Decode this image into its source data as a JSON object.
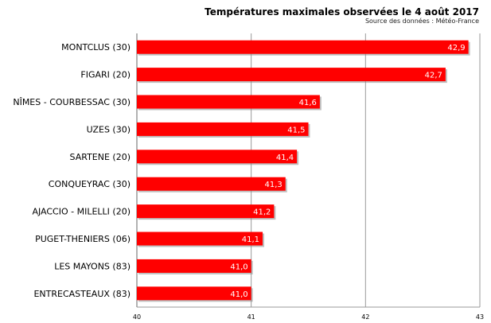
{
  "chart_data": {
    "type": "bar",
    "orientation": "horizontal",
    "title": "Températures maximales observées le 4 août 2017",
    "subtitle": "Source des données : Météo-France",
    "categories": [
      "MONTCLUS (30)",
      "FIGARI (20)",
      "NÎMES - COURBESSAC (30)",
      "UZES (30)",
      "SARTENE (20)",
      "CONQUEYRAC (30)",
      "AJACCIO - MILELLI (20)",
      "PUGET-THENIERS (06)",
      "LES MAYONS (83)",
      "ENTRECASTEAUX (83)"
    ],
    "values": [
      42.9,
      42.7,
      41.6,
      41.5,
      41.4,
      41.3,
      41.2,
      41.1,
      41.0,
      41.0
    ],
    "value_labels": [
      "42,9",
      "42,7",
      "41,6",
      "41,5",
      "41,4",
      "41,3",
      "41,2",
      "41,1",
      "41,0",
      "41,0"
    ],
    "xlim": [
      40,
      43
    ],
    "x_ticks": [
      "40",
      "41",
      "42",
      "43"
    ],
    "bar_color": "#ff0000",
    "grid": true
  }
}
